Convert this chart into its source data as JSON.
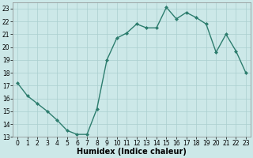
{
  "x": [
    0,
    1,
    2,
    3,
    4,
    5,
    6,
    7,
    8,
    9,
    10,
    11,
    12,
    13,
    14,
    15,
    16,
    17,
    18,
    19,
    20,
    21,
    22,
    23
  ],
  "y": [
    17.2,
    16.2,
    15.6,
    15.0,
    14.3,
    13.5,
    13.2,
    13.2,
    15.2,
    19.0,
    20.7,
    21.1,
    21.8,
    21.5,
    21.5,
    23.1,
    22.2,
    22.7,
    22.3,
    21.8,
    19.6,
    21.0,
    19.7,
    18.0
  ],
  "line_color": "#2d7d6e",
  "marker": "D",
  "marker_size": 2.0,
  "bg_color": "#cce8e8",
  "grid_color": "#aacfcf",
  "xlabel": "Humidex (Indice chaleur)",
  "ylim": [
    13,
    23.5
  ],
  "xlim": [
    -0.5,
    23.5
  ],
  "yticks": [
    13,
    14,
    15,
    16,
    17,
    18,
    19,
    20,
    21,
    22,
    23
  ],
  "xticks": [
    0,
    1,
    2,
    3,
    4,
    5,
    6,
    7,
    8,
    9,
    10,
    11,
    12,
    13,
    14,
    15,
    16,
    17,
    18,
    19,
    20,
    21,
    22,
    23
  ],
  "xlabel_fontsize": 7,
  "tick_fontsize": 5.5,
  "spine_color": "#888888",
  "linewidth": 1.0
}
